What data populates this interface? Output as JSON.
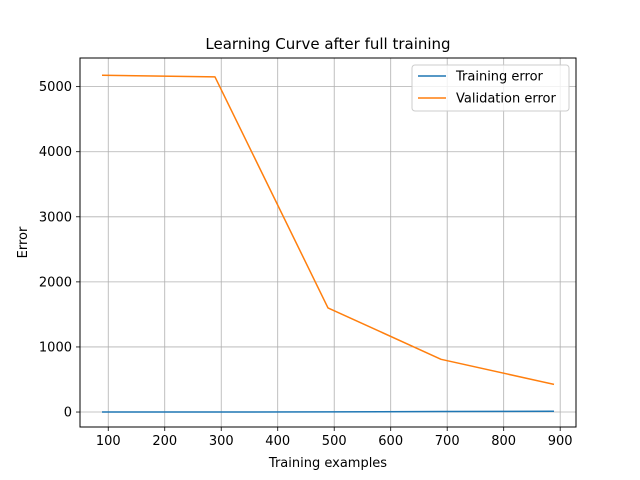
{
  "chart_data": {
    "type": "line",
    "title": "Learning Curve after full training",
    "xlabel": "Training examples",
    "ylabel": "Error",
    "x": [
      89,
      289,
      489,
      689,
      889
    ],
    "series": [
      {
        "name": "Training error",
        "color": "#1f77b4",
        "values": [
          0,
          0,
          2,
          8,
          12
        ]
      },
      {
        "name": "Validation error",
        "color": "#ff7f0e",
        "values": [
          5175,
          5150,
          1600,
          810,
          425
        ]
      }
    ],
    "xlim": [
      50,
      928
    ],
    "ylim": [
      -230,
      5440
    ],
    "xticks": [
      100,
      200,
      300,
      400,
      500,
      600,
      700,
      800,
      900
    ],
    "yticks": [
      0,
      1000,
      2000,
      3000,
      4000,
      5000
    ],
    "grid": true,
    "legend_position": "top-right"
  }
}
